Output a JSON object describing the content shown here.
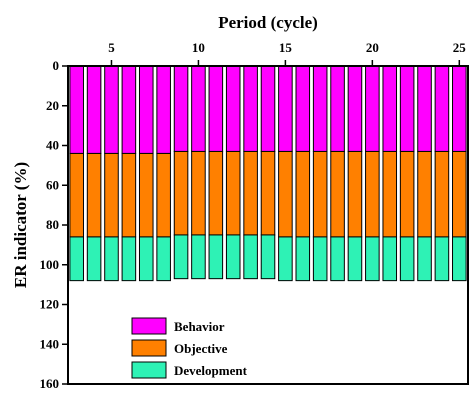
{
  "chart_data": {
    "type": "bar",
    "stacked": true,
    "rendering": "mirrored (image appears rotated 180 degrees and horizontally flipped)",
    "xlabel": "Period (cycle)",
    "ylabel": "ER indicator (%)",
    "x": [
      3,
      4,
      5,
      6,
      7,
      8,
      9,
      10,
      11,
      12,
      13,
      14,
      15,
      16,
      17,
      18,
      19,
      20,
      21,
      22,
      23,
      24,
      25
    ],
    "x_ticks": [
      5,
      10,
      15,
      20,
      25
    ],
    "x_tick_labels": [
      "5",
      "10",
      "15",
      "20",
      "25"
    ],
    "xlim": [
      2.5,
      25.5
    ],
    "ylim": [
      0,
      160
    ],
    "y_ticks": [
      0,
      20,
      40,
      60,
      80,
      100,
      120,
      140,
      160
    ],
    "y_tick_labels": [
      "0",
      "20",
      "40",
      "60",
      "80",
      "100",
      "120",
      "140",
      "160"
    ],
    "series": [
      {
        "name": "Behavior",
        "color": "#ff00ff",
        "values": [
          44,
          44,
          44,
          44,
          44,
          44,
          43,
          43,
          43,
          43,
          43,
          43,
          43,
          43,
          43,
          43,
          43,
          43,
          43,
          43,
          43,
          43,
          43
        ]
      },
      {
        "name": "Objective",
        "color": "#ff8000",
        "values": [
          42,
          42,
          42,
          42,
          42,
          42,
          42,
          42,
          42,
          42,
          42,
          42,
          43,
          43,
          43,
          43,
          43,
          43,
          43,
          43,
          43,
          43,
          43
        ]
      },
      {
        "name": "Development",
        "color": "#2ef2b5",
        "values": [
          22,
          22,
          22,
          22,
          22,
          22,
          22,
          22,
          22,
          22,
          22,
          22,
          22,
          22,
          22,
          22,
          22,
          22,
          22,
          22,
          22,
          22,
          22
        ]
      }
    ],
    "legend_position": "bottom-center",
    "grid": false
  }
}
